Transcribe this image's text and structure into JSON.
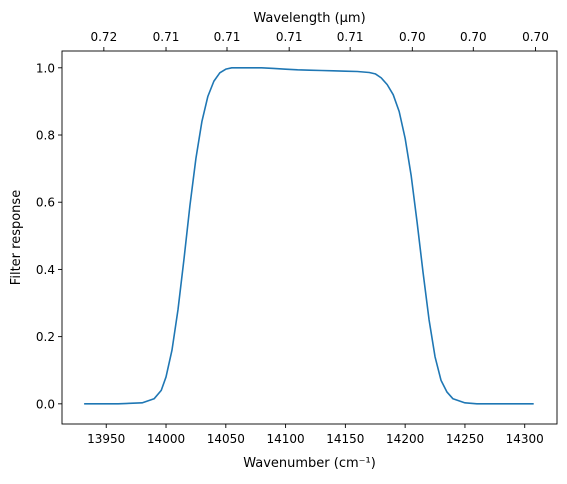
{
  "chart_data": {
    "type": "line",
    "title": "",
    "xlabel": "Wavenumber (cm⁻¹)",
    "ylabel": "Filter response",
    "top_xlabel": "Wavelength (μm)",
    "xlim": [
      13913,
      14327
    ],
    "ylim": [
      -0.06,
      1.05
    ],
    "grid": false,
    "legend": "none",
    "line_color": "#1f77b4",
    "x_ticks": [
      13950,
      14000,
      14050,
      14100,
      14150,
      14200,
      14250,
      14300
    ],
    "x_tick_labels": [
      "13950",
      "14000",
      "14050",
      "14100",
      "14150",
      "14200",
      "14250",
      "14300"
    ],
    "y_ticks": [
      0.0,
      0.2,
      0.4,
      0.6,
      0.8,
      1.0
    ],
    "y_tick_labels": [
      "0.0",
      "0.2",
      "0.4",
      "0.6",
      "0.8",
      "1.0"
    ],
    "top_ticks": [
      13948,
      14000,
      14051,
      14103,
      14154,
      14206,
      14257,
      14309
    ],
    "top_tick_labels": [
      "0.72",
      "0.71",
      "0.71",
      "0.71",
      "0.71",
      "0.70",
      "0.70",
      "0.70"
    ],
    "series": [
      {
        "x": [
          13932,
          13960,
          13980,
          13990,
          13996,
          14000,
          14005,
          14010,
          14015,
          14020,
          14025,
          14030,
          14035,
          14040,
          14045,
          14050,
          14055,
          14060,
          14070,
          14080,
          14090,
          14100,
          14110,
          14120,
          14130,
          14140,
          14150,
          14160,
          14170,
          14175,
          14180,
          14185,
          14190,
          14195,
          14200,
          14205,
          14210,
          14215,
          14220,
          14225,
          14230,
          14235,
          14240,
          14250,
          14260,
          14280,
          14307
        ],
        "y": [
          0.0,
          0.0,
          0.003,
          0.015,
          0.04,
          0.08,
          0.16,
          0.28,
          0.43,
          0.59,
          0.73,
          0.84,
          0.915,
          0.96,
          0.985,
          0.996,
          1.0,
          1.0,
          1.0,
          1.0,
          0.998,
          0.996,
          0.994,
          0.993,
          0.992,
          0.991,
          0.99,
          0.989,
          0.986,
          0.982,
          0.97,
          0.95,
          0.92,
          0.87,
          0.79,
          0.68,
          0.54,
          0.39,
          0.25,
          0.14,
          0.07,
          0.035,
          0.015,
          0.003,
          0.0,
          0.0,
          0.0
        ]
      }
    ]
  }
}
